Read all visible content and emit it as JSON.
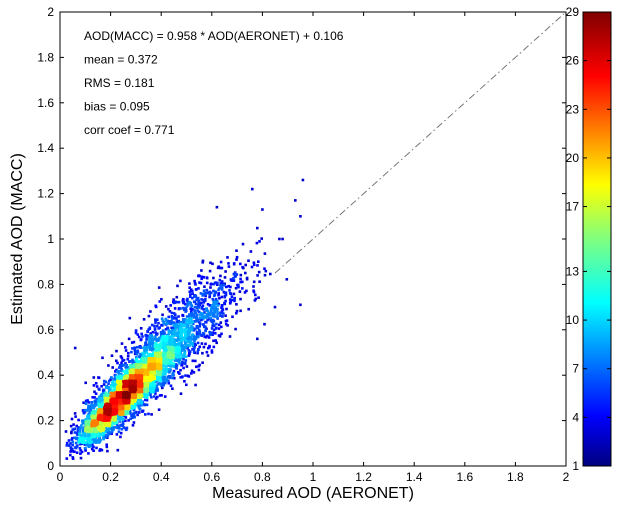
{
  "chart_data": {
    "type": "scatter",
    "title": "",
    "xlabel": "Measured AOD (AERONET)",
    "ylabel": "Estimated AOD (MACC)",
    "xlim": [
      0,
      2
    ],
    "ylim": [
      0,
      2
    ],
    "x_ticks": [
      "0",
      "0.2",
      "0.4",
      "0.6",
      "0.8",
      "1",
      "1.2",
      "1.4",
      "1.6",
      "1.8",
      "2"
    ],
    "y_ticks": [
      "0",
      "0.2",
      "0.4",
      "0.6",
      "0.8",
      "1",
      "1.2",
      "1.4",
      "1.6",
      "1.8",
      "2"
    ],
    "grid": false,
    "annotations": [
      "AOD(MACC) = 0.958 * AOD(AERONET) + 0.106",
      "mean = 0.372",
      "RMS = 0.181",
      "bias = 0.095",
      "corr coef = 0.771"
    ],
    "reference_line": {
      "style": "dash-dot",
      "from": [
        0,
        0
      ],
      "to": [
        2,
        2
      ]
    },
    "colorbar": {
      "colormap": "jet",
      "range": [
        1,
        29
      ],
      "ticks": [
        "29",
        "26",
        "23",
        "20",
        "17",
        "13",
        "10",
        "7",
        "4",
        "1"
      ]
    },
    "density_clusters": [
      {
        "x": 0.28,
        "y": 0.34,
        "spread_x": 0.09,
        "spread_y": 0.1,
        "count": 2600
      },
      {
        "x": 0.45,
        "y": 0.55,
        "spread_x": 0.14,
        "spread_y": 0.16,
        "count": 1500
      },
      {
        "x": 0.18,
        "y": 0.22,
        "spread_x": 0.06,
        "spread_y": 0.07,
        "count": 900
      }
    ],
    "outliers": [
      {
        "x": 0.96,
        "y": 1.26
      },
      {
        "x": 0.93,
        "y": 1.17
      },
      {
        "x": 0.95,
        "y": 1.1
      },
      {
        "x": 0.76,
        "y": 1.22
      },
      {
        "x": 0.8,
        "y": 1.13
      },
      {
        "x": 0.62,
        "y": 1.14
      },
      {
        "x": 0.88,
        "y": 1.0
      },
      {
        "x": 0.95,
        "y": 0.71
      },
      {
        "x": 0.85,
        "y": 0.7
      },
      {
        "x": 0.78,
        "y": 0.56
      },
      {
        "x": 0.06,
        "y": 0.52
      },
      {
        "x": 0.7,
        "y": 0.92
      }
    ]
  }
}
